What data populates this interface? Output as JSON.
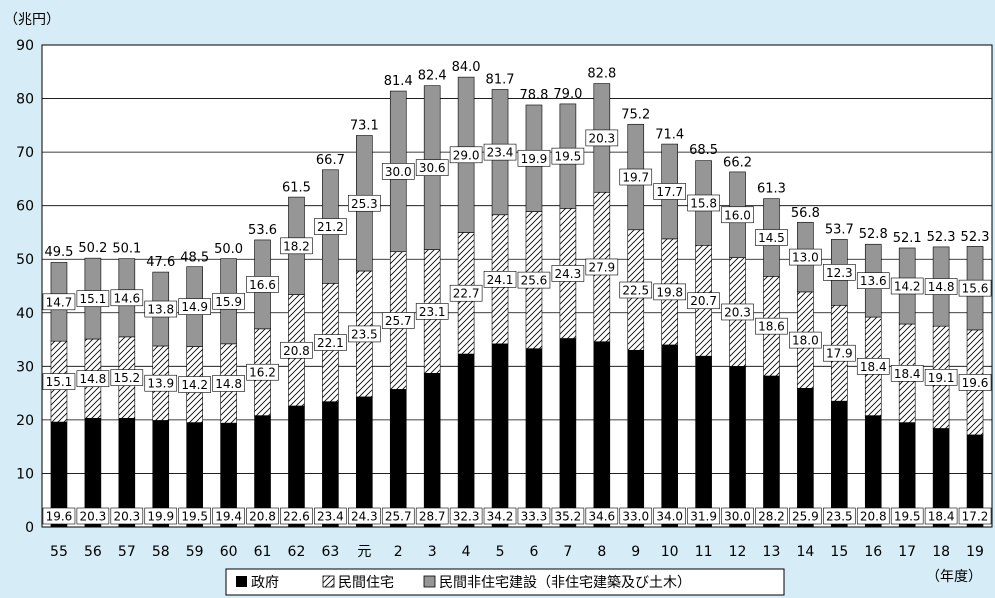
{
  "chart_data": {
    "type": "bar",
    "stacked": true,
    "ylabel": "（兆円）",
    "xlabel": "（年度）",
    "ylim": [
      0,
      90
    ],
    "yticks": [
      0,
      10,
      20,
      30,
      40,
      50,
      60,
      70,
      80,
      90
    ],
    "grid": true,
    "legend_position": "bottom",
    "categories": [
      "55",
      "56",
      "57",
      "58",
      "59",
      "60",
      "61",
      "62",
      "63",
      "元",
      "2",
      "3",
      "4",
      "5",
      "6",
      "7",
      "8",
      "9",
      "10",
      "11",
      "12",
      "13",
      "14",
      "15",
      "16",
      "17",
      "18",
      "19"
    ],
    "series": [
      {
        "name": "政府",
        "values": [
          19.6,
          20.3,
          20.3,
          19.9,
          19.5,
          19.4,
          20.8,
          22.6,
          23.4,
          24.3,
          25.7,
          28.7,
          32.3,
          34.2,
          33.3,
          35.2,
          34.6,
          33.0,
          34.0,
          31.9,
          30.0,
          28.2,
          25.9,
          23.5,
          20.8,
          19.5,
          18.4,
          17.2
        ]
      },
      {
        "name": "民間住宅",
        "values": [
          15.1,
          14.8,
          15.2,
          13.9,
          14.2,
          14.8,
          16.2,
          20.8,
          22.1,
          23.5,
          25.7,
          23.1,
          22.7,
          24.1,
          25.6,
          24.3,
          27.9,
          22.5,
          19.8,
          20.7,
          20.3,
          18.6,
          18.0,
          17.9,
          18.4,
          18.4,
          19.1,
          19.6
        ]
      },
      {
        "name": "民間非住宅建設（非住宅建築及び土木）",
        "values": [
          14.7,
          15.1,
          14.6,
          13.8,
          14.9,
          15.9,
          16.6,
          18.2,
          21.2,
          25.3,
          30.0,
          30.6,
          29.0,
          23.4,
          19.9,
          19.5,
          20.3,
          19.7,
          17.7,
          15.8,
          16.0,
          14.5,
          13.0,
          12.3,
          13.6,
          14.2,
          14.8,
          15.6
        ]
      }
    ],
    "totals": [
      49.5,
      50.2,
      50.1,
      47.6,
      48.5,
      50.0,
      53.6,
      61.5,
      66.7,
      73.1,
      81.4,
      82.4,
      84.0,
      81.7,
      78.8,
      79.0,
      82.8,
      75.2,
      71.4,
      68.5,
      66.2,
      61.3,
      56.8,
      53.7,
      52.8,
      52.1,
      52.3,
      52.3
    ]
  },
  "colors": {
    "background": "#d6ecf7",
    "government": "#000000",
    "housing_hatch": "#ffffff",
    "nonresidential": "#969696",
    "grid": "#000000"
  }
}
